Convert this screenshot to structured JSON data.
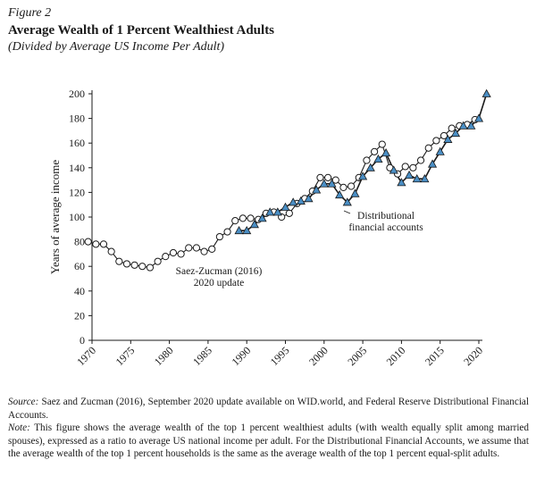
{
  "header": {
    "figure_label": "Figure 2",
    "title": "Average Wealth of 1 Percent Wealthiest Adults",
    "subtitle": "(Divided by Average US Income Per Adult)"
  },
  "chart_data": {
    "type": "line",
    "ylabel": "Years of average income",
    "xlabel": "",
    "xlim": [
      1970,
      2020
    ],
    "ylim": [
      0,
      200
    ],
    "x_ticks": [
      1970,
      1975,
      1980,
      1985,
      1990,
      1995,
      2000,
      2005,
      2010,
      2015,
      2020
    ],
    "y_ticks": [
      0,
      20,
      40,
      60,
      80,
      100,
      120,
      140,
      160,
      180,
      200
    ],
    "grid": false,
    "series": [
      {
        "name": "Saez-Zucman (2016) 2020 update",
        "marker": "circle",
        "color": "#1a1a1a",
        "points": [
          [
            1969.5,
            80
          ],
          [
            1970.5,
            78
          ],
          [
            1971.5,
            78
          ],
          [
            1972.5,
            72
          ],
          [
            1973.5,
            64
          ],
          [
            1974.5,
            62
          ],
          [
            1975.5,
            61
          ],
          [
            1976.5,
            60
          ],
          [
            1977.5,
            59
          ],
          [
            1978.5,
            64
          ],
          [
            1979.5,
            68
          ],
          [
            1980.5,
            71
          ],
          [
            1981.5,
            70
          ],
          [
            1982.5,
            75
          ],
          [
            1983.5,
            75
          ],
          [
            1984.5,
            72
          ],
          [
            1985.5,
            74
          ],
          [
            1986.5,
            84
          ],
          [
            1987.5,
            88
          ],
          [
            1988.5,
            97
          ],
          [
            1989.5,
            99
          ],
          [
            1990.5,
            99
          ],
          [
            1991.5,
            98
          ],
          [
            1992.5,
            103
          ],
          [
            1993.5,
            104
          ],
          [
            1994.5,
            100
          ],
          [
            1995.5,
            103
          ],
          [
            1996.5,
            111
          ],
          [
            1997.5,
            115
          ],
          [
            1998.5,
            121
          ],
          [
            1999.5,
            132
          ],
          [
            2000.5,
            132
          ],
          [
            2001.5,
            130
          ],
          [
            2002.5,
            124
          ],
          [
            2003.5,
            125
          ],
          [
            2004.5,
            132
          ],
          [
            2005.5,
            146
          ],
          [
            2006.5,
            153
          ],
          [
            2007.5,
            159
          ],
          [
            2008.5,
            140
          ],
          [
            2009.5,
            135
          ],
          [
            2010.5,
            141
          ],
          [
            2011.5,
            140
          ],
          [
            2012.5,
            146
          ],
          [
            2013.5,
            156
          ],
          [
            2014.5,
            162
          ],
          [
            2015.5,
            166
          ],
          [
            2016.5,
            172
          ],
          [
            2017.5,
            174
          ],
          [
            2018.5,
            175
          ],
          [
            2019.5,
            179
          ]
        ]
      },
      {
        "name": "Distributional financial accounts",
        "marker": "triangle",
        "color": "#4a8ec4",
        "points": [
          [
            1989,
            89
          ],
          [
            1990,
            89
          ],
          [
            1991,
            94
          ],
          [
            1992,
            99
          ],
          [
            1993,
            104
          ],
          [
            1994,
            104
          ],
          [
            1995,
            108
          ],
          [
            1996,
            112
          ],
          [
            1997,
            113
          ],
          [
            1998,
            115
          ],
          [
            1999,
            122
          ],
          [
            2000,
            127
          ],
          [
            2001,
            127
          ],
          [
            2002,
            118
          ],
          [
            2003,
            112
          ],
          [
            2004,
            119
          ],
          [
            2005,
            133
          ],
          [
            2006,
            140
          ],
          [
            2007,
            147
          ],
          [
            2008,
            152
          ],
          [
            2009,
            138
          ],
          [
            2010,
            128
          ],
          [
            2011,
            134
          ],
          [
            2012,
            131
          ],
          [
            2013,
            131
          ],
          [
            2014,
            143
          ],
          [
            2015,
            153
          ],
          [
            2016,
            163
          ],
          [
            2017,
            168
          ],
          [
            2018,
            174
          ],
          [
            2019,
            174
          ],
          [
            2020,
            180
          ],
          [
            2021,
            200
          ]
        ]
      }
    ],
    "annotations": [
      {
        "id": "dfa",
        "lines": [
          "Distributional",
          "financial accounts"
        ]
      },
      {
        "id": "sz",
        "lines": [
          "Saez-Zucman (2016)",
          "2020 update"
        ]
      }
    ]
  },
  "notes": {
    "source_label": "Source:",
    "source_text": " Saez and Zucman (2016), September 2020 update available on WID.world, and Federal Reserve Distributional Financial Accounts.",
    "note_label": "Note:",
    "note_text": " This figure shows the average wealth of the top 1 percent wealthiest adults (with wealth equally split among married spouses), expressed as a ratio to average US national income per adult. For the Distributional Financial Accounts, we assume that the average wealth of the top 1 percent households is the same as the average wealth of the top 1 percent equal-split adults."
  }
}
